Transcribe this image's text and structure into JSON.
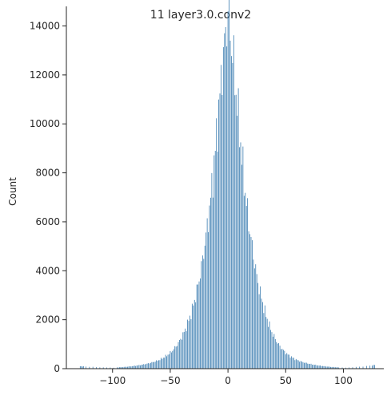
{
  "chart_data": {
    "type": "histogram",
    "title": "11  layer3.0.conv2",
    "xlabel": "",
    "ylabel": "Count",
    "xlim": [
      -140,
      135
    ],
    "ylim": [
      0,
      14800
    ],
    "xticks": [
      -100,
      -50,
      0,
      50,
      100
    ],
    "xtick_labels": [
      "−100",
      "−50",
      "0",
      "50",
      "100"
    ],
    "yticks": [
      0,
      2000,
      4000,
      6000,
      8000,
      10000,
      12000,
      14000
    ],
    "ytick_labels": [
      "0",
      "2000",
      "4000",
      "6000",
      "8000",
      "10000",
      "12000",
      "14000"
    ],
    "bar_color": "#3a7cb0",
    "bins": {
      "x_start": -128,
      "x_end": 127,
      "step": 1,
      "bar_width_fraction": 0.55,
      "counts_shape": "approximately Laplace-like peak centred at 0",
      "peak_count": 14600,
      "approx_counts_at": {
        "-128": 100,
        "-100": 40,
        "-80": 120,
        "-60": 350,
        "-50": 650,
        "-40": 1300,
        "-30": 2600,
        "-20": 5100,
        "-10": 9500,
        "-5": 12400,
        "0": 14600,
        "5": 12400,
        "10": 9800,
        "20": 5300,
        "30": 2700,
        "40": 1300,
        "50": 650,
        "60": 350,
        "80": 120,
        "100": 40,
        "127": 150
      }
    }
  }
}
